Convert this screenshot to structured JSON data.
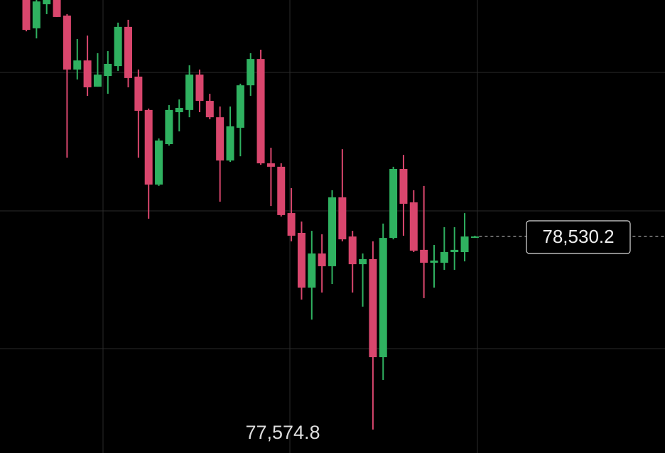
{
  "chart_data": {
    "type": "candlestick",
    "open": [
      79700,
      79560,
      79679,
      79700,
      79623,
      79356,
      79401,
      79271,
      79324,
      79373,
      79567,
      79321,
      79156,
      78787,
      78987,
      79145,
      79156,
      79331,
      79201,
      79120,
      78906,
      79068,
      79278,
      79408,
      78892,
      78875,
      78646,
      78548,
      78277,
      78446,
      78383,
      78724,
      78530,
      78393,
      78418,
      77933,
      78523,
      78864,
      78699,
      78464,
      78400,
      78400,
      78453,
      78453,
      78523
    ],
    "high": [
      79700,
      79700,
      79700,
      79700,
      79630,
      79507,
      79524,
      79437,
      79447,
      79588,
      79602,
      79356,
      79163,
      79015,
      79180,
      79208,
      79377,
      79356,
      79236,
      79173,
      79173,
      79286,
      79437,
      79454,
      78969,
      78892,
      78769,
      78604,
      78558,
      78541,
      78759,
      78962,
      78558,
      78446,
      78506,
      78594,
      78875,
      78934,
      78759,
      78780,
      78488,
      78576,
      78576,
      78646,
      78534
    ],
    "low": [
      79545,
      79510,
      79630,
      79616,
      78920,
      79307,
      79226,
      79271,
      79236,
      79349,
      79268,
      78920,
      78618,
      78780,
      78980,
      79050,
      79120,
      79145,
      79110,
      78702,
      78899,
      78927,
      79226,
      78885,
      78681,
      78629,
      78506,
      78218,
      78119,
      78253,
      78295,
      78506,
      78253,
      78183,
      77574.8,
      77821,
      78516,
      78534,
      78453,
      78225,
      78277,
      78365,
      78365,
      78407,
      78523
    ],
    "close": [
      79552,
      79693,
      79700,
      79616,
      79356,
      79401,
      79268,
      79331,
      79384,
      79567,
      79314,
      79152,
      78787,
      79005,
      79156,
      79166,
      79331,
      79201,
      79120,
      78906,
      79075,
      79278,
      79408,
      78892,
      78875,
      78636,
      78534,
      78277,
      78446,
      78383,
      78724,
      78516,
      78393,
      78418,
      77933,
      78523,
      78864,
      78692,
      78460,
      78400,
      78411,
      78453,
      78464,
      78530,
      78530.2
    ],
    "up_color": "#2fb160",
    "down_color": "#d9466d",
    "ylim": [
      77459,
      79700
    ],
    "last_price": {
      "value": 78530.2,
      "label": "78,530.2"
    },
    "low_marker": {
      "value": 77574.8,
      "label": "77,574.8"
    }
  }
}
